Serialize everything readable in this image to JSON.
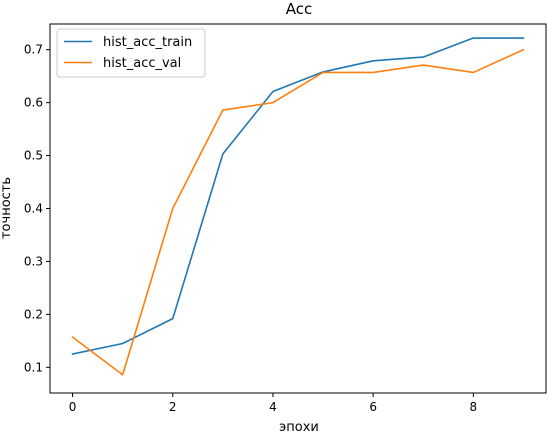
{
  "chart_data": {
    "type": "line",
    "title": "Acc",
    "xlabel": "эпохи",
    "ylabel": "точность",
    "xlim": [
      -0.45,
      9.45
    ],
    "ylim": [
      0.0515,
      0.7485
    ],
    "xticks": [
      0,
      2,
      4,
      6,
      8
    ],
    "yticks": [
      0.1,
      0.2,
      0.3,
      0.4,
      0.5,
      0.6,
      0.7
    ],
    "grid": false,
    "legend_position": "top-left",
    "x": [
      0,
      1,
      2,
      3,
      4,
      5,
      6,
      7,
      8,
      9
    ],
    "series": [
      {
        "name": "hist_acc_train",
        "color": "#1f77b4",
        "values": [
          0.125,
          0.145,
          0.192,
          0.503,
          0.621,
          0.658,
          0.679,
          0.686,
          0.722,
          0.722
        ]
      },
      {
        "name": "hist_acc_val",
        "color": "#ff7f0e",
        "values": [
          0.157,
          0.086,
          0.4,
          0.586,
          0.6,
          0.657,
          0.657,
          0.671,
          0.657,
          0.7
        ]
      }
    ]
  }
}
